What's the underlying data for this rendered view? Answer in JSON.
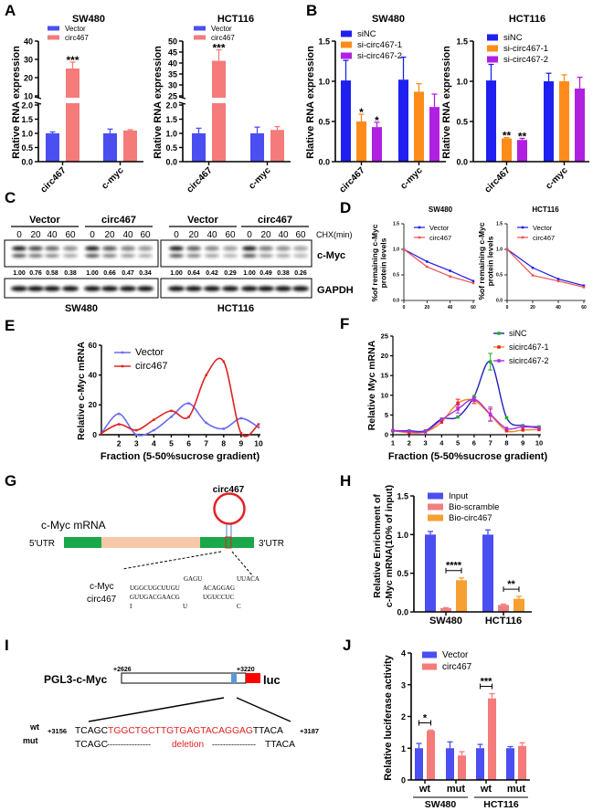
{
  "panel_labels": [
    "A",
    "B",
    "C",
    "D",
    "E",
    "F",
    "G",
    "H",
    "I",
    "J"
  ],
  "chart_data": [
    {
      "id": "A-SW480",
      "panel": "A",
      "type": "bar",
      "title": "SW480",
      "ylabel": "Rlative RNA expression",
      "categories": [
        "circ467",
        "c-myc"
      ],
      "y_axis_break": [
        2,
        10
      ],
      "yticks": [
        "0.0",
        "0.5",
        "1.0",
        "1.5",
        "2.0",
        "10",
        "20",
        "30",
        "40"
      ],
      "series": [
        {
          "name": "Vector",
          "color": "#4b4ef0",
          "values": [
            1.0,
            1.0
          ],
          "errors": [
            0.05,
            0.15
          ]
        },
        {
          "name": "circ467",
          "color": "#f57a7a",
          "values": [
            25,
            1.1
          ],
          "errors": [
            3.5,
            0.03
          ]
        }
      ],
      "significance": [
        {
          "category": 0,
          "series": 1,
          "label": "***"
        }
      ]
    },
    {
      "id": "A-HCT116",
      "panel": "A",
      "type": "bar",
      "title": "HCT116",
      "ylabel": "Rlative RNA expression",
      "categories": [
        "circ467",
        "c-myc"
      ],
      "y_axis_break": [
        2,
        25
      ],
      "yticks": [
        "0.0",
        "0.5",
        "1.0",
        "1.5",
        "2.0",
        "25",
        "30",
        "35",
        "40",
        "45",
        "50"
      ],
      "series": [
        {
          "name": "Vector",
          "color": "#4b4ef0",
          "values": [
            1.0,
            1.0
          ],
          "errors": [
            0.18,
            0.22
          ]
        },
        {
          "name": "circ467",
          "color": "#f57a7a",
          "values": [
            41,
            1.12
          ],
          "errors": [
            5,
            0.12
          ]
        }
      ],
      "significance": [
        {
          "category": 0,
          "series": 1,
          "label": "***"
        }
      ]
    },
    {
      "id": "B-SW480",
      "panel": "B",
      "type": "bar",
      "title": "SW480",
      "ylabel": "Rlative RNA expression",
      "categories": [
        "circ467",
        "c-myc"
      ],
      "ylim": [
        0,
        1.5
      ],
      "yticks": [
        "0.0",
        "0.5",
        "1.0",
        "1.5"
      ],
      "series": [
        {
          "name": "siNC",
          "color": "#1f1ff0",
          "values": [
            1.01,
            1.02
          ],
          "errors": [
            0.25,
            0.28
          ]
        },
        {
          "name": "si-circ467-1",
          "color": "#ff8c1a",
          "values": [
            0.5,
            0.87
          ],
          "errors": [
            0.09,
            0.1
          ]
        },
        {
          "name": "si-circ467-2",
          "color": "#b020e0",
          "values": [
            0.43,
            0.68
          ],
          "errors": [
            0.06,
            0.16
          ]
        }
      ],
      "significance": [
        {
          "category": 0,
          "series": 1,
          "label": "*"
        },
        {
          "category": 0,
          "series": 2,
          "label": "*"
        }
      ]
    },
    {
      "id": "B-HCT116",
      "panel": "B",
      "type": "bar",
      "title": "HCT116",
      "ylabel": "Rlative RNA expression",
      "categories": [
        "circ467",
        "c-myc"
      ],
      "ylim": [
        0,
        1.5
      ],
      "yticks": [
        "0.0",
        "0.5",
        "1.0",
        "1.5"
      ],
      "series": [
        {
          "name": "siNC",
          "color": "#1f1ff0",
          "values": [
            1.01,
            1.0
          ],
          "errors": [
            0.2,
            0.1
          ]
        },
        {
          "name": "si-circ467-1",
          "color": "#ff8c1a",
          "values": [
            0.29,
            1.0
          ],
          "errors": [
            0.01,
            0.08
          ]
        },
        {
          "name": "si-circ467-2",
          "color": "#b020e0",
          "values": [
            0.27,
            0.91
          ],
          "errors": [
            0.02,
            0.14
          ]
        }
      ],
      "significance": [
        {
          "category": 0,
          "series": 1,
          "label": "**"
        },
        {
          "category": 0,
          "series": 2,
          "label": "**"
        }
      ]
    },
    {
      "id": "D-SW480",
      "panel": "D",
      "type": "line",
      "title": "SW480",
      "ylabel": [
        "%of remaining c-Myc",
        "protein levels"
      ],
      "x": [
        0,
        20,
        40,
        60
      ],
      "xticks": [
        "0",
        "20",
        "40",
        "60"
      ],
      "ylim": [
        0,
        1.5
      ],
      "yticks": [
        "0.0",
        "0.5",
        "1.0",
        "1.5"
      ],
      "series": [
        {
          "name": "Vector",
          "color": "#1a1ae0",
          "values": [
            1.0,
            0.76,
            0.58,
            0.38
          ]
        },
        {
          "name": "circ467",
          "color": "#f05050",
          "values": [
            1.0,
            0.66,
            0.47,
            0.34
          ]
        }
      ]
    },
    {
      "id": "D-HCT116",
      "panel": "D",
      "type": "line",
      "title": "HCT116",
      "ylabel": [
        "%of remaining c-Myc",
        "protein levels"
      ],
      "x": [
        0,
        20,
        40,
        60
      ],
      "xticks": [
        "0",
        "20",
        "40",
        "60"
      ],
      "ylim": [
        0,
        1.5
      ],
      "yticks": [
        "0.0",
        "0.5",
        "1.0",
        "1.5"
      ],
      "series": [
        {
          "name": "Vector",
          "color": "#1a1ae0",
          "values": [
            1.0,
            0.64,
            0.42,
            0.29
          ]
        },
        {
          "name": "circ467",
          "color": "#f05050",
          "values": [
            1.0,
            0.49,
            0.38,
            0.26
          ]
        }
      ]
    },
    {
      "id": "E",
      "panel": "E",
      "type": "line",
      "smooth": true,
      "title": "",
      "ylabel": "Relative c-Myc mRNA",
      "xlabel": "Fraction (5-50%sucrose gradient)",
      "x": [
        1,
        2,
        3,
        4,
        5,
        6,
        7,
        8,
        9,
        10
      ],
      "xticks": [
        "2",
        "3",
        "4",
        "5",
        "6",
        "7",
        "8",
        "9",
        "10"
      ],
      "ylim": [
        0,
        60
      ],
      "yticks": [
        "0",
        "20",
        "40",
        "60"
      ],
      "series": [
        {
          "name": "Vector",
          "color": "#6a6af0",
          "values": [
            1,
            14,
            0,
            3,
            12,
            21,
            8,
            4,
            11,
            5
          ]
        },
        {
          "name": "circ467",
          "color": "#e02020",
          "values": [
            1,
            7,
            3,
            10,
            16,
            12,
            40,
            49,
            1,
            7
          ]
        }
      ]
    },
    {
      "id": "F",
      "panel": "F",
      "type": "line",
      "smooth": true,
      "title": "",
      "ylabel": "Relative Myc mRNA",
      "xlabel": "Fraction (5-50%sucrose gradient)",
      "x": [
        1,
        2,
        3,
        4,
        5,
        6,
        7,
        8,
        9,
        10
      ],
      "xticks": [
        "1",
        "2",
        "3",
        "4",
        "5",
        "6",
        "7",
        "8",
        "9",
        "10"
      ],
      "ylim": [
        0,
        25
      ],
      "yticks": [
        "0",
        "5",
        "10",
        "15",
        "20",
        "25"
      ],
      "series": [
        {
          "name": "siNC",
          "color": "#2020c0",
          "marker_color": "#20b020",
          "values": [
            1,
            1,
            1,
            4,
            4.5,
            9.7,
            18.5,
            4.3,
            2.3,
            2
          ],
          "errors": [
            0,
            0,
            0,
            0,
            0,
            0,
            2.1,
            0,
            0,
            0
          ]
        },
        {
          "name": "sicirc467-1",
          "color": "#f08a20",
          "marker_color": "#f02020",
          "values": [
            1,
            0.5,
            0.7,
            3.2,
            8,
            8.7,
            5,
            1,
            1.2,
            1.3
          ],
          "errors": [
            0,
            0,
            0,
            0,
            1,
            0.8,
            1.5,
            0,
            0,
            0
          ]
        },
        {
          "name": "sicirc467-2",
          "color": "#b030e0",
          "marker_color": "#b030e0",
          "values": [
            1,
            0.8,
            0.8,
            3.8,
            6.5,
            9,
            5.2,
            1.6,
            2,
            1.7
          ],
          "errors": [
            0,
            0,
            0,
            0,
            1,
            0.5,
            1.8,
            0,
            0,
            0
          ]
        }
      ]
    },
    {
      "id": "H",
      "panel": "H",
      "type": "bar",
      "title": "",
      "ylabel": [
        "Relative Enrichment of",
        "c-Myc mRNA(10% of input)"
      ],
      "categories": [
        "SW480",
        "HCT116"
      ],
      "ylim": [
        0,
        1.5
      ],
      "yticks": [
        "0.0",
        "0.5",
        "1.0",
        "1.5"
      ],
      "series": [
        {
          "name": "Input",
          "color": "#4b4ef0",
          "values": [
            1.0,
            1.0
          ],
          "errors": [
            0.04,
            0.06
          ]
        },
        {
          "name": "Bio-scramble",
          "color": "#f08080",
          "values": [
            0.05,
            0.09
          ],
          "errors": [
            0.005,
            0.01
          ]
        },
        {
          "name": "Bio-circ467",
          "color": "#f5a030",
          "values": [
            0.41,
            0.17
          ],
          "errors": [
            0.03,
            0.03
          ]
        }
      ],
      "significance": [
        {
          "category": 0,
          "from": 1,
          "to": 2,
          "label": "****",
          "bracket": true
        },
        {
          "category": 1,
          "from": 1,
          "to": 2,
          "label": "**",
          "bracket": true
        }
      ]
    },
    {
      "id": "J",
      "panel": "J",
      "type": "bar",
      "title": "",
      "ylabel": "Relative luciferase activity",
      "categories": [
        "wt",
        "mut",
        "wt",
        "mut"
      ],
      "groups": [
        "SW480",
        "HCT116"
      ],
      "ylim": [
        0,
        4
      ],
      "yticks": [
        "0",
        "1",
        "2",
        "3",
        "4"
      ],
      "series": [
        {
          "name": "Vector",
          "color": "#4b4ef0",
          "values": [
            1.0,
            1.0,
            1.0,
            1.0
          ],
          "errors": [
            0.15,
            0.2,
            0.12,
            0.05
          ]
        },
        {
          "name": "circ467",
          "color": "#f57a7a",
          "values": [
            1.55,
            0.77,
            2.57,
            1.07
          ],
          "errors": [
            0.02,
            0.12,
            0.15,
            0.1
          ]
        }
      ],
      "significance": [
        {
          "category": 0,
          "from": 0,
          "to": 1,
          "label": "*",
          "bracket": true
        },
        {
          "category": 2,
          "from": 0,
          "to": 1,
          "label": "***",
          "bracket": true
        }
      ]
    }
  ],
  "blot": {
    "groups": [
      "Vector",
      "circ467",
      "Vector",
      "circ467"
    ],
    "times": [
      "0",
      "20",
      "40",
      "60"
    ],
    "chx_label": "CHX(min)",
    "proteins": [
      "c-Myc",
      "GAPDH"
    ],
    "quant": [
      [
        "1.00",
        "0.76",
        "0.58",
        "0.38",
        "1.00",
        "0.66",
        "0.47",
        "0.34"
      ],
      [
        "1.00",
        "0.64",
        "0.42",
        "0.29",
        "1.00",
        "0.49",
        "0.38",
        "0.26"
      ]
    ],
    "cell_lines": [
      "SW480",
      "HCT116"
    ]
  },
  "diagram_g": {
    "circ_label": "circ467",
    "mrna_label": "c-Myc mRNA",
    "utr5": "5'UTR",
    "utr3": "3'UTR",
    "colors": {
      "cds_flank": "#1aa84a",
      "cds": "#f7c9a8",
      "circ": "#e52020"
    },
    "seq": {
      "cmyc_label": "c-Myc",
      "circ_label": "circ467",
      "top_bulge1": "GAGU",
      "top_bulge2": "UUACA",
      "cmyc_seq1": "UGGCUGCUUGU",
      "cmyc_seq2": "ACAGGAG",
      "circ_seq1": "GUUGACGAACG",
      "circ_seq2": "UGUCCUC",
      "bottom_bulge": [
        "I",
        "U",
        "C"
      ]
    }
  },
  "construct_i": {
    "name": "PGL3-c-Myc",
    "start": "+2626",
    "end": "+3220",
    "reporter": "luc",
    "wt_label": "wt",
    "mut_label": "mut",
    "wt_start": "+3156",
    "wt_end": "+3187",
    "wt_seq_left": "TCAGC",
    "wt_seq_site": "TGGCTGCTTGTGAGTACAGGAG",
    "wt_seq_right": "TTACA",
    "mut_left": "TCAGC",
    "mut_dashes1": "----------------",
    "mut_deletion": "deletion",
    "mut_dashes2": "----------------",
    "mut_right": "TTACA"
  }
}
